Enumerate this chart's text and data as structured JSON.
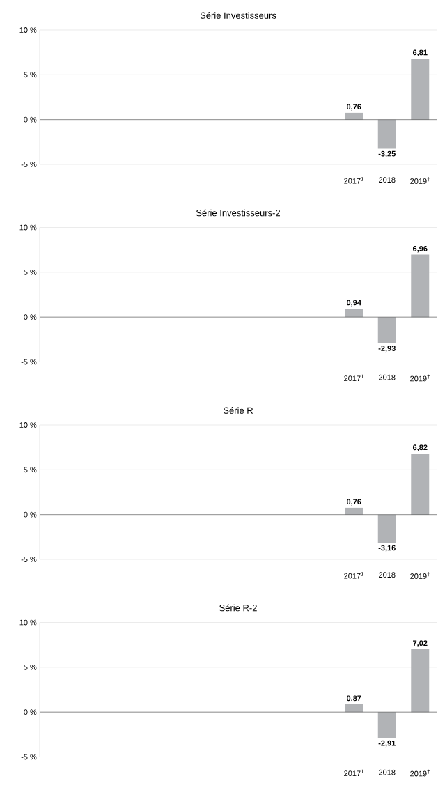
{
  "chart_data": [
    {
      "type": "bar",
      "title": "Série Investisseurs",
      "categories": [
        null,
        null,
        null,
        null,
        null,
        null,
        null,
        null,
        null,
        "2017$^{1}$",
        "2018",
        "2019$^{†}$"
      ],
      "values": [
        null,
        null,
        null,
        null,
        null,
        null,
        null,
        null,
        null,
        0.76,
        -3.25,
        6.81
      ],
      "value_labels": [
        null,
        null,
        null,
        null,
        null,
        null,
        null,
        null,
        null,
        "0,76",
        "-3,25",
        "6,81"
      ],
      "color": "#b1b3b6",
      "ylim": [
        -5,
        10
      ],
      "yticks": [
        {
          "value": -5,
          "label": "-5 %"
        },
        {
          "value": 0,
          "label": "0 %"
        },
        {
          "value": 5,
          "label": "5 %"
        },
        {
          "value": 10,
          "label": "10 %"
        }
      ],
      "grid": "y"
    },
    {
      "type": "bar",
      "title": "Série Investisseurs-2",
      "categories": [
        null,
        null,
        null,
        null,
        null,
        null,
        null,
        null,
        null,
        "2017$^{1}$",
        "2018",
        "2019$^{†}$"
      ],
      "values": [
        null,
        null,
        null,
        null,
        null,
        null,
        null,
        null,
        null,
        0.94,
        -2.93,
        6.96
      ],
      "value_labels": [
        null,
        null,
        null,
        null,
        null,
        null,
        null,
        null,
        null,
        "0,94",
        "-2,93",
        "6,96"
      ],
      "color": "#b1b3b6",
      "ylim": [
        -5,
        10
      ],
      "yticks": [
        {
          "value": -5,
          "label": "-5 %"
        },
        {
          "value": 0,
          "label": "0 %"
        },
        {
          "value": 5,
          "label": "5 %"
        },
        {
          "value": 10,
          "label": "10 %"
        }
      ],
      "grid": "y"
    },
    {
      "type": "bar",
      "title": "Série R",
      "categories": [
        null,
        null,
        null,
        null,
        null,
        null,
        null,
        null,
        null,
        "2017$^{1}$",
        "2018",
        "2019$^{†}$"
      ],
      "values": [
        null,
        null,
        null,
        null,
        null,
        null,
        null,
        null,
        null,
        0.76,
        -3.16,
        6.82
      ],
      "value_labels": [
        null,
        null,
        null,
        null,
        null,
        null,
        null,
        null,
        null,
        "0,76",
        "-3,16",
        "6,82"
      ],
      "color": "#b1b3b6",
      "ylim": [
        -5,
        10
      ],
      "yticks": [
        {
          "value": -5,
          "label": "-5 %"
        },
        {
          "value": 0,
          "label": "0 %"
        },
        {
          "value": 5,
          "label": "5 %"
        },
        {
          "value": 10,
          "label": "10 %"
        }
      ],
      "grid": "y"
    },
    {
      "type": "bar",
      "title": "Série R-2",
      "categories": [
        null,
        null,
        null,
        null,
        null,
        null,
        null,
        null,
        null,
        "2017$^{1}$",
        "2018",
        "2019$^{†}$"
      ],
      "values": [
        null,
        null,
        null,
        null,
        null,
        null,
        null,
        null,
        null,
        0.87,
        -2.91,
        7.02
      ],
      "value_labels": [
        null,
        null,
        null,
        null,
        null,
        null,
        null,
        null,
        null,
        "0,87",
        "-2,91",
        "7,02"
      ],
      "color": "#b1b3b6",
      "ylim": [
        -5,
        10
      ],
      "yticks": [
        {
          "value": -5,
          "label": "-5 %"
        },
        {
          "value": 0,
          "label": "0 %"
        },
        {
          "value": 5,
          "label": "5 %"
        },
        {
          "value": 10,
          "label": "10 %"
        }
      ],
      "grid": "y"
    }
  ]
}
